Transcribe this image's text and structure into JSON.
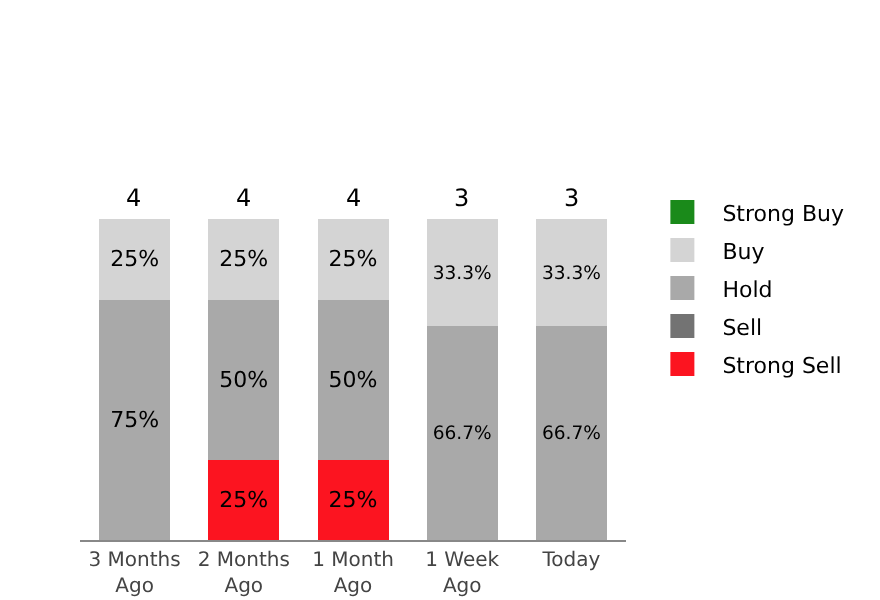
{
  "chart_data": {
    "type": "bar",
    "stacked": true,
    "legend": "right",
    "grid": false,
    "categories": [
      "3 Months Ago",
      "2 Months Ago",
      "1 Month Ago",
      "1 Week Ago",
      "Today"
    ],
    "series": [
      {
        "name": "Strong Sell",
        "color": "#fc1420",
        "values": [
          null,
          25,
          25,
          null,
          null
        ],
        "value_labels": [
          null,
          "25%",
          "25%",
          null,
          null
        ]
      },
      {
        "name": "Sell",
        "color": "#737373",
        "values": [
          null,
          null,
          null,
          null,
          null
        ]
      },
      {
        "name": "Hold",
        "color": "#a9a9a9",
        "values": [
          75,
          50,
          50,
          66.7,
          66.7
        ],
        "value_labels": [
          "75%",
          "50%",
          "50%",
          "66.7%",
          "66.7%"
        ]
      },
      {
        "name": "Buy",
        "color": "#d4d4d4",
        "values": [
          25,
          25,
          25,
          33.3,
          33.3
        ],
        "value_labels": [
          "25%",
          "25%",
          "25%",
          "33.3%",
          "33.3%"
        ]
      },
      {
        "name": "Strong Buy",
        "color": "#1a8a1a",
        "values": [
          null,
          null,
          null,
          null,
          null
        ]
      }
    ],
    "annotations": [
      {
        "text": "4",
        "x": "3 Months Ago",
        "y": 100
      },
      {
        "text": "4",
        "x": "2 Months Ago",
        "y": 100
      },
      {
        "text": "4",
        "x": "1 Month Ago",
        "y": 100
      },
      {
        "text": "3",
        "x": "1 Week Ago",
        "y": 100
      },
      {
        "text": "3",
        "x": "Today",
        "y": 100
      }
    ]
  }
}
